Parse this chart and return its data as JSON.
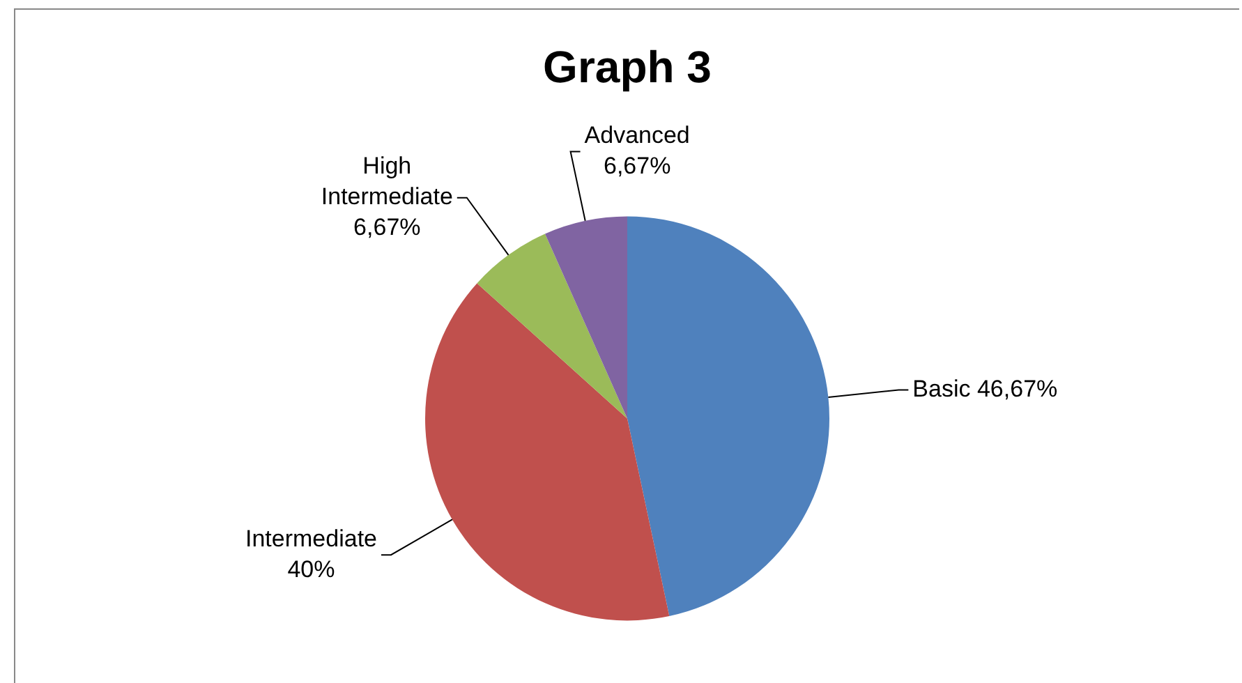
{
  "chart_data": {
    "type": "pie",
    "title": "Graph 3",
    "categories": [
      "Basic",
      "Intermediate",
      "High Intermediate",
      "Advanced"
    ],
    "values": [
      46.67,
      40,
      6.67,
      6.67
    ],
    "colors": [
      "#4f81bd",
      "#c0504d",
      "#9bbb59",
      "#8064a2"
    ],
    "value_labels": [
      "46,67%",
      "40%",
      "6,67%",
      "6,67%"
    ],
    "legend": false
  }
}
